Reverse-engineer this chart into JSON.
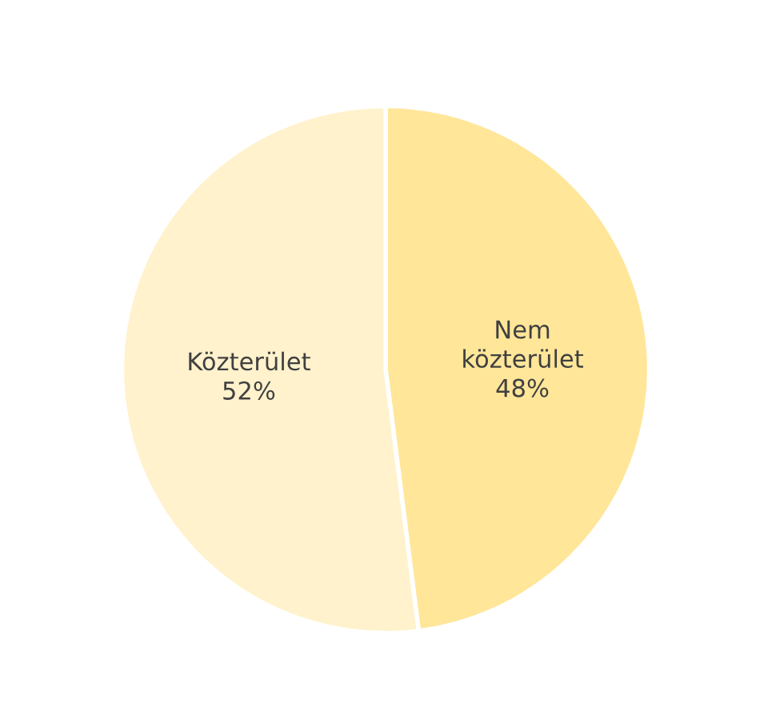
{
  "chart_data": {
    "type": "pie",
    "categories": [
      "Nem közterület",
      "Közterület"
    ],
    "values": [
      48,
      52
    ],
    "colors": [
      "#ffe699",
      "#fff2cc"
    ],
    "value_labels": [
      "48%",
      "52%"
    ]
  }
}
